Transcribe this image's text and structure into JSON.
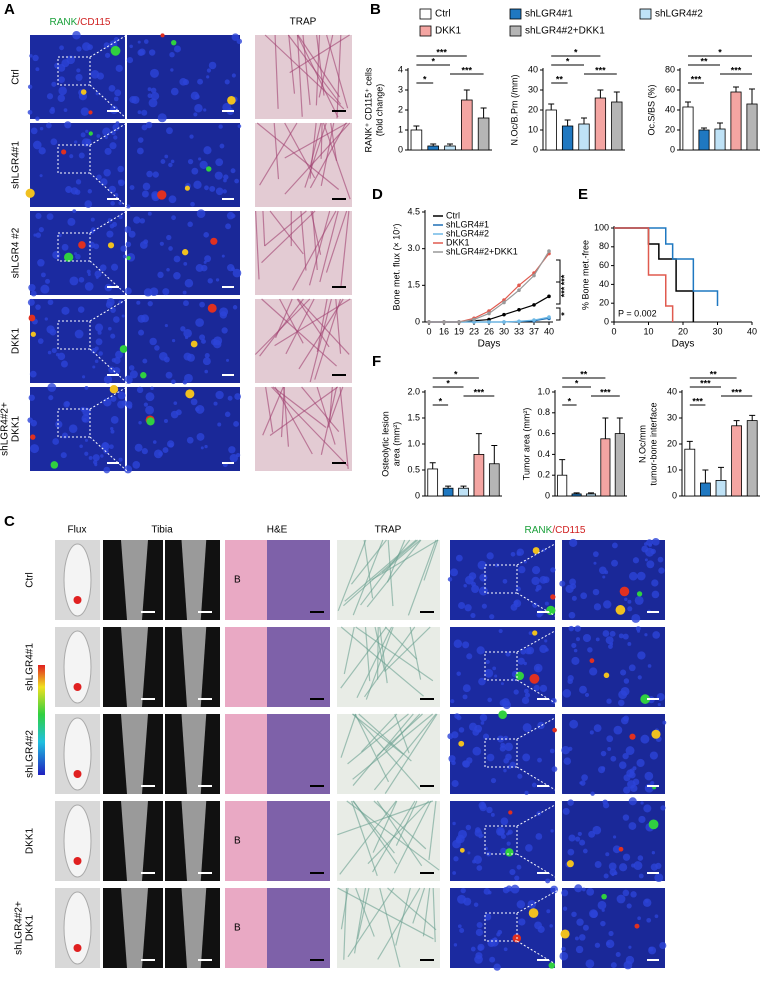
{
  "panel_labels": [
    "A",
    "B",
    "C",
    "D",
    "E",
    "F"
  ],
  "panel_a": {
    "green": "RANK",
    "red": "/CD115",
    "trap": "TRAP",
    "rows": [
      [
        "Ctrl"
      ],
      [
        "shLGR4#1"
      ],
      [
        "shLGR4 #2"
      ],
      [
        "DKK1"
      ],
      [
        "shLGR4#2+",
        "DKK1"
      ]
    ]
  },
  "panel_c": {
    "headers": [
      "Flux",
      "Tibia",
      "H&E",
      "TRAP"
    ],
    "green": "RANK",
    "red": "/CD115",
    "bone": "B",
    "rows": [
      [
        "Ctrl"
      ],
      [
        "shLGR4#1"
      ],
      [
        "shLGR4#2"
      ],
      [
        "DKK1"
      ],
      [
        "shLGR4#2+",
        "DKK1"
      ]
    ]
  },
  "legend": {
    "names": [
      "Ctrl",
      "shLGR4#1",
      "shLGR4#2",
      "DKK1",
      "shLGR4#2+DKK1"
    ],
    "colors": [
      "#ffffff",
      "#1f78c1",
      "#bfe2f6",
      "#f4a5a2",
      "#b5b5b5"
    ]
  },
  "chart_data": [
    {
      "type": "bar",
      "ylabel": [
        "RANK⁺ CD115⁺ cells",
        "(fold change)"
      ],
      "values": [
        1.0,
        0.2,
        0.2,
        2.5,
        1.6
      ],
      "errors": [
        0.2,
        0.1,
        0.1,
        0.5,
        0.5
      ],
      "ylim": [
        0,
        4
      ],
      "yticks": [
        0,
        1,
        2,
        3,
        4
      ],
      "comparisons": [
        {
          "pair": [
            0,
            3
          ],
          "label": "***"
        },
        {
          "pair": [
            0,
            2
          ],
          "label": "*"
        },
        {
          "pair": [
            2,
            4
          ],
          "label": "***"
        },
        {
          "pair": [
            0,
            1
          ],
          "label": "*"
        }
      ]
    },
    {
      "type": "bar",
      "ylabel": [
        "N.Oc/B.Pm (/mm)"
      ],
      "values": [
        20,
        12,
        13,
        26,
        24
      ],
      "errors": [
        3,
        3,
        3,
        4,
        5
      ],
      "ylim": [
        0,
        40
      ],
      "yticks": [
        0,
        10,
        20,
        30,
        40
      ],
      "comparisons": [
        {
          "pair": [
            0,
            3
          ],
          "label": "*"
        },
        {
          "pair": [
            0,
            2
          ],
          "label": "*"
        },
        {
          "pair": [
            2,
            4
          ],
          "label": "***"
        },
        {
          "pair": [
            0,
            1
          ],
          "label": "**"
        }
      ]
    },
    {
      "type": "bar",
      "ylabel": [
        "Oc.S/BS (%)"
      ],
      "values": [
        43,
        20,
        21,
        58,
        46
      ],
      "errors": [
        5,
        2,
        6,
        5,
        15
      ],
      "ylim": [
        0,
        80
      ],
      "yticks": [
        0,
        20,
        40,
        60,
        80
      ],
      "comparisons": [
        {
          "pair": [
            0,
            4
          ],
          "label": "*"
        },
        {
          "pair": [
            0,
            2
          ],
          "label": "**"
        },
        {
          "pair": [
            2,
            4
          ],
          "label": "***"
        },
        {
          "pair": [
            0,
            1
          ],
          "label": "***"
        }
      ]
    },
    {
      "type": "line",
      "ylabel": [
        "Bone met. flux (× 10⁷)"
      ],
      "xlabel": "Days",
      "categories": [
        "0",
        "16",
        "19",
        "23",
        "26",
        "30",
        "33",
        "37",
        "40"
      ],
      "ylim": [
        0,
        4.5
      ],
      "yticks": [
        0,
        1.5,
        {
          "value": 3,
          "label": "3.0"
        },
        4.5
      ],
      "series": [
        {
          "name": "Ctrl",
          "color": "#000000",
          "values": [
            0,
            0,
            0,
            0.05,
            0.1,
            0.3,
            0.5,
            0.7,
            1.05
          ]
        },
        {
          "name": "shLGR4#1",
          "color": "#1f6fb5",
          "values": [
            0,
            0,
            0,
            0,
            0,
            0,
            0.02,
            0.05,
            0.15
          ]
        },
        {
          "name": "shLGR4#2",
          "color": "#6fb9e6",
          "values": [
            0,
            0,
            0,
            0,
            0,
            0,
            0.03,
            0.08,
            0.2
          ]
        },
        {
          "name": "DKK1",
          "color": "#e05a4f",
          "values": [
            0,
            0,
            0,
            0.15,
            0.45,
            0.9,
            1.5,
            2.0,
            2.8
          ]
        },
        {
          "name": "shLGR4#2+DKK1",
          "color": "#999999",
          "values": [
            0,
            0,
            0,
            0.1,
            0.35,
            0.8,
            1.3,
            1.9,
            2.9
          ]
        }
      ],
      "annotations": [
        "***",
        "***",
        "*"
      ]
    },
    {
      "type": "step",
      "ylabel": [
        "% Bone met.-free"
      ],
      "xlabel": "Days",
      "annotation": "P = 0.002",
      "xlim": [
        0,
        40
      ],
      "xticks": [
        0,
        10,
        20,
        30,
        40
      ],
      "ylim": [
        0,
        100
      ],
      "yticks": [
        0,
        20,
        40,
        60,
        80,
        100
      ],
      "series": [
        {
          "color": "#000000",
          "x": [
            0,
            10,
            10,
            13,
            13,
            18,
            18,
            23,
            23
          ],
          "values": [
            100,
            100,
            83,
            83,
            67,
            67,
            33,
            33,
            0
          ]
        },
        {
          "color": "#1f78c1",
          "x": [
            0,
            15,
            15,
            17,
            17,
            23,
            23,
            30,
            30
          ],
          "values": [
            100,
            100,
            83,
            83,
            67,
            67,
            33,
            33,
            17
          ]
        },
        {
          "color": "#e05a4f",
          "x": [
            0,
            10,
            10,
            15,
            15,
            17,
            17
          ],
          "values": [
            100,
            100,
            50,
            50,
            17,
            17,
            0
          ]
        }
      ]
    },
    {
      "type": "bar",
      "ylabel": [
        "Osteolytic lesion",
        "area (mm²)"
      ],
      "values": [
        0.52,
        0.15,
        0.15,
        0.8,
        0.62
      ],
      "errors": [
        0.12,
        0.04,
        0.04,
        0.4,
        0.35
      ],
      "ylim": [
        0,
        2
      ],
      "yticks": [
        0,
        0.5,
        {
          "value": 1,
          "label": "1.0"
        },
        1.5,
        {
          "value": 2,
          "label": "2.0"
        }
      ],
      "comparisons": [
        {
          "pair": [
            0,
            3
          ],
          "label": "*"
        },
        {
          "pair": [
            0,
            2
          ],
          "label": "*"
        },
        {
          "pair": [
            2,
            4
          ],
          "label": "***"
        },
        {
          "pair": [
            0,
            1
          ],
          "label": "*"
        }
      ]
    },
    {
      "type": "bar",
      "ylabel": [
        "Tumor area (mm²)"
      ],
      "values": [
        0.2,
        0.02,
        0.02,
        0.55,
        0.6
      ],
      "errors": [
        0.15,
        0.01,
        0.01,
        0.2,
        0.15
      ],
      "ylim": [
        0,
        1
      ],
      "yticks": [
        0,
        0.2,
        0.4,
        0.6,
        0.8,
        {
          "value": 1,
          "label": "1.0"
        }
      ],
      "comparisons": [
        {
          "pair": [
            0,
            3
          ],
          "label": "**"
        },
        {
          "pair": [
            0,
            2
          ],
          "label": "*"
        },
        {
          "pair": [
            2,
            4
          ],
          "label": "***"
        },
        {
          "pair": [
            0,
            1
          ],
          "label": "*"
        }
      ]
    },
    {
      "type": "bar",
      "ylabel": [
        "N.Oc/mm",
        "tumor-bone interface"
      ],
      "values": [
        18,
        5,
        6,
        27,
        29
      ],
      "errors": [
        3,
        5,
        5,
        2,
        2
      ],
      "ylim": [
        0,
        40
      ],
      "yticks": [
        0,
        10,
        20,
        30,
        40
      ],
      "comparisons": [
        {
          "pair": [
            0,
            3
          ],
          "label": "**"
        },
        {
          "pair": [
            0,
            2
          ],
          "label": "***"
        },
        {
          "pair": [
            2,
            4
          ],
          "label": "***"
        },
        {
          "pair": [
            0,
            1
          ],
          "label": "***"
        }
      ]
    }
  ]
}
